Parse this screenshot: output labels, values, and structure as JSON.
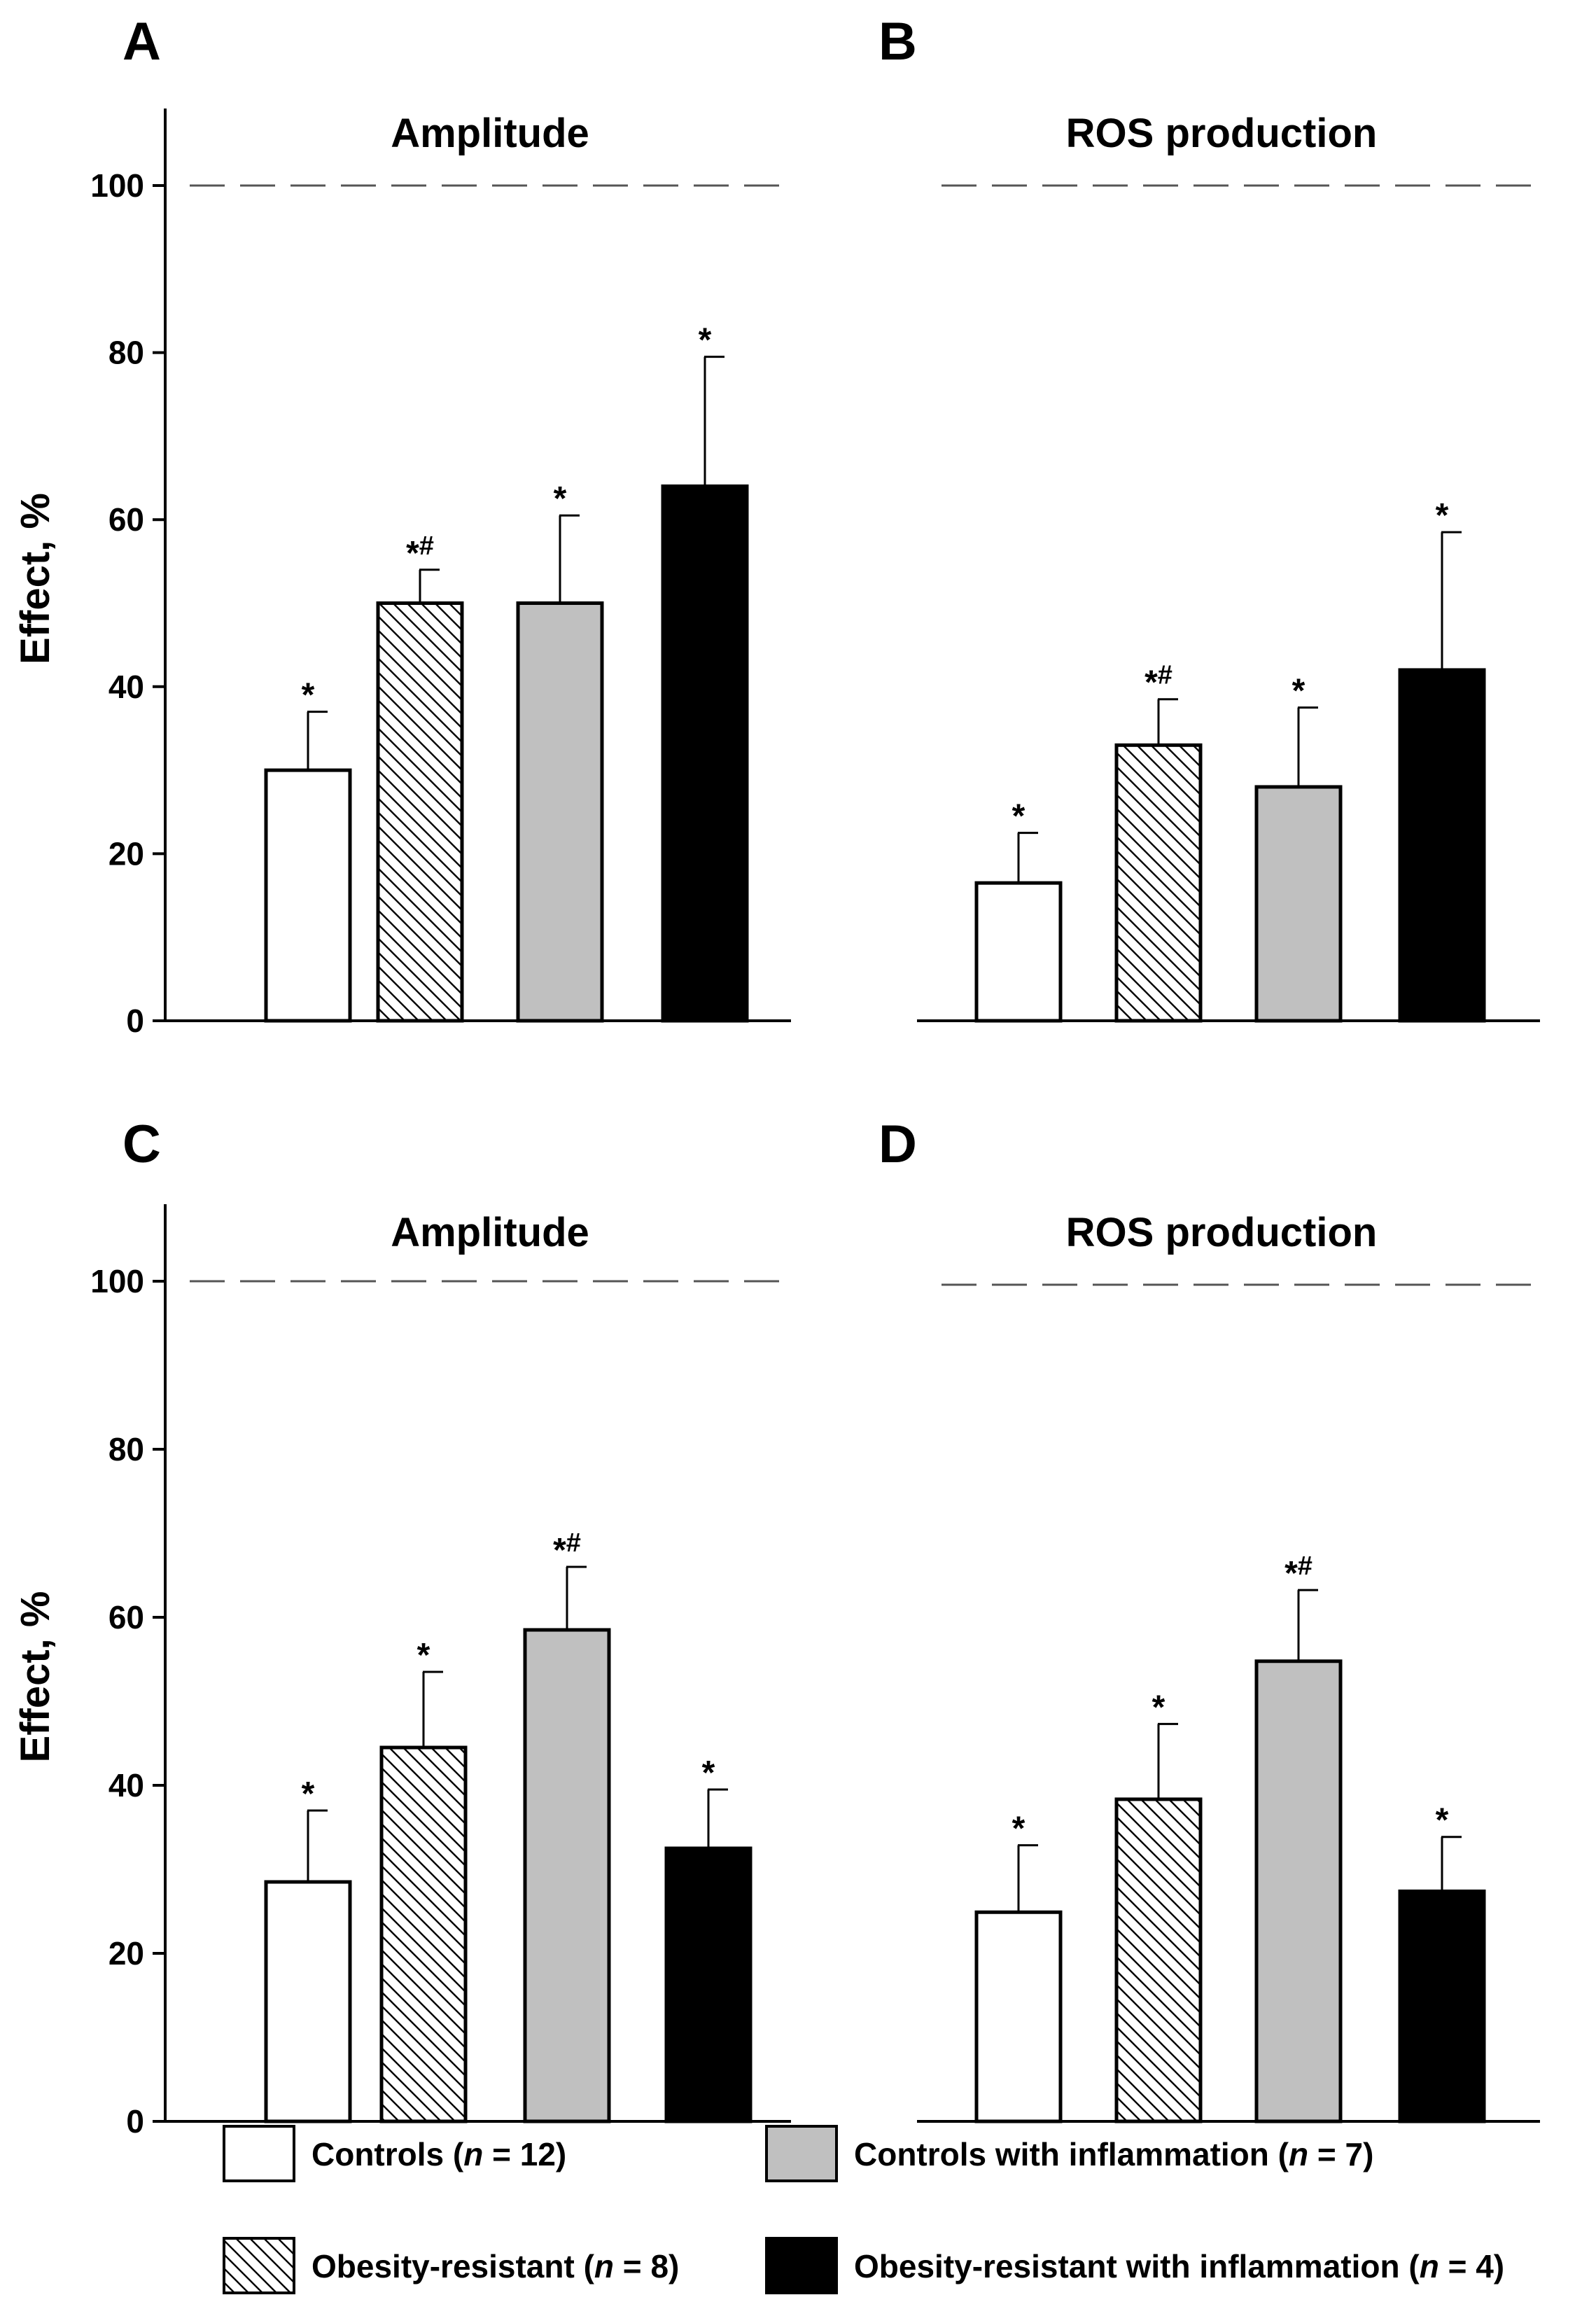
{
  "chart_data": [
    {
      "type": "bar",
      "panel": "A",
      "title": "Amplitude",
      "ylabel": "Effect, %",
      "ylim": [
        0,
        100
      ],
      "yticks": [
        "0",
        "20",
        "40",
        "60",
        "80",
        "100"
      ],
      "reference_line": 100,
      "series": [
        {
          "name": "Controls (n = 12)",
          "value": 30,
          "error": 7,
          "label": "*"
        },
        {
          "name": "Obesity-resistant (n = 8)",
          "value": 50,
          "error": 4,
          "label": "*#"
        },
        {
          "name": "Controls with inflammation (n = 7)",
          "value": 50,
          "error": 10.5,
          "label": "*"
        },
        {
          "name": "Obesity-resistant with inflammation (n = 4)",
          "value": 64,
          "error": 15.5,
          "label": "*"
        }
      ]
    },
    {
      "type": "bar",
      "panel": "B",
      "title": "ROS production",
      "ylabel": "",
      "ylim": [
        0,
        100
      ],
      "yticks": [],
      "reference_line": 100,
      "series": [
        {
          "name": "Controls (n = 12)",
          "value": 16.5,
          "error": 6,
          "label": "*"
        },
        {
          "name": "Obesity-resistant (n = 8)",
          "value": 33,
          "error": 5.5,
          "label": "*#"
        },
        {
          "name": "Controls with inflammation (n = 7)",
          "value": 28,
          "error": 9.5,
          "label": "*"
        },
        {
          "name": "Obesity-resistant with inflammation (n = 4)",
          "value": 42,
          "error": 16.5,
          "label": "*"
        }
      ]
    },
    {
      "type": "bar",
      "panel": "C",
      "title": "Amplitude",
      "ylabel": "Effect, %",
      "ylim": [
        0,
        100
      ],
      "yticks": [
        "0",
        "20",
        "40",
        "60",
        "80",
        "100"
      ],
      "reference_line": 100,
      "series": [
        {
          "name": "Controls (n = 12)",
          "value": 28.5,
          "error": 8.5,
          "label": "*"
        },
        {
          "name": "Obesity-resistant (n = 8)",
          "value": 44.5,
          "error": 9,
          "label": "*"
        },
        {
          "name": "Controls with inflammation (n = 7)",
          "value": 58.5,
          "error": 7.5,
          "label": "*#"
        },
        {
          "name": "Obesity-resistant with inflammation (n = 4)",
          "value": 32.5,
          "error": 7,
          "label": "*"
        }
      ]
    },
    {
      "type": "bar",
      "panel": "D",
      "title": "ROS production",
      "ylabel": "",
      "ylim": [
        0,
        100
      ],
      "yticks": [],
      "reference_line": 100,
      "series": [
        {
          "name": "Controls (n = 12)",
          "value": 25,
          "error": 8,
          "label": "*"
        },
        {
          "name": "Obesity-resistant (n = 8)",
          "value": 38.5,
          "error": 9,
          "label": "*"
        },
        {
          "name": "Controls with inflammation (n = 7)",
          "value": 55,
          "error": 8.5,
          "label": "*#"
        },
        {
          "name": "Obesity-resistant with inflammation (n = 4)",
          "value": 27.5,
          "error": 6.5,
          "label": "*"
        }
      ]
    }
  ],
  "legend": [
    {
      "fill": "white",
      "label": "Controls",
      "n": "12"
    },
    {
      "fill": "hatched",
      "label": "Obesity-resistant",
      "n": "8"
    },
    {
      "fill": "gray",
      "label": "Controls with inflammation",
      "n": "7"
    },
    {
      "fill": "black",
      "label": "Obesity-resistant with inflammation",
      "n": "4"
    }
  ],
  "legend_n_symbol": "n",
  "colors": {
    "white": "#ffffff",
    "gray": "#c0c0c0",
    "black": "#000000",
    "reference": "#555555"
  }
}
